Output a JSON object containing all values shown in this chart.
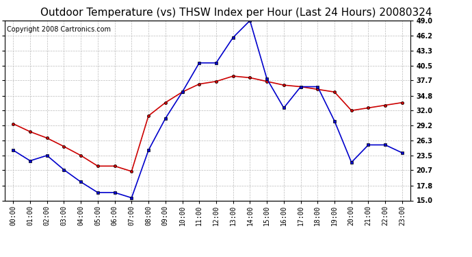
{
  "title": "Outdoor Temperature (vs) THSW Index per Hour (Last 24 Hours) 20080324",
  "copyright": "Copyright 2008 Cartronics.com",
  "hours": [
    "00:00",
    "01:00",
    "02:00",
    "03:00",
    "04:00",
    "05:00",
    "06:00",
    "07:00",
    "08:00",
    "09:00",
    "10:00",
    "11:00",
    "12:00",
    "13:00",
    "14:00",
    "15:00",
    "16:00",
    "17:00",
    "18:00",
    "19:00",
    "20:00",
    "21:00",
    "22:00",
    "23:00"
  ],
  "temp": [
    29.5,
    28.0,
    26.8,
    25.2,
    23.5,
    21.5,
    21.5,
    20.5,
    31.0,
    33.5,
    35.5,
    37.0,
    37.5,
    38.5,
    38.2,
    37.5,
    36.8,
    36.5,
    36.0,
    35.5,
    32.0,
    32.5,
    33.0,
    33.5
  ],
  "thsw": [
    24.5,
    22.5,
    23.5,
    20.8,
    18.5,
    16.5,
    16.5,
    15.5,
    24.5,
    30.5,
    35.5,
    41.0,
    41.0,
    45.8,
    49.0,
    38.0,
    32.5,
    36.5,
    36.5,
    30.0,
    22.2,
    25.5,
    25.5,
    24.0
  ],
  "ylim": [
    15.0,
    49.0
  ],
  "yticks": [
    15.0,
    17.8,
    20.7,
    23.5,
    26.3,
    29.2,
    32.0,
    34.8,
    37.7,
    40.5,
    43.3,
    46.2,
    49.0
  ],
  "temp_color": "#cc0000",
  "thsw_color": "#0000cc",
  "bg_color": "#ffffff",
  "grid_color": "#bbbbbb",
  "title_fontsize": 11,
  "copyright_fontsize": 7,
  "tick_fontsize": 7
}
